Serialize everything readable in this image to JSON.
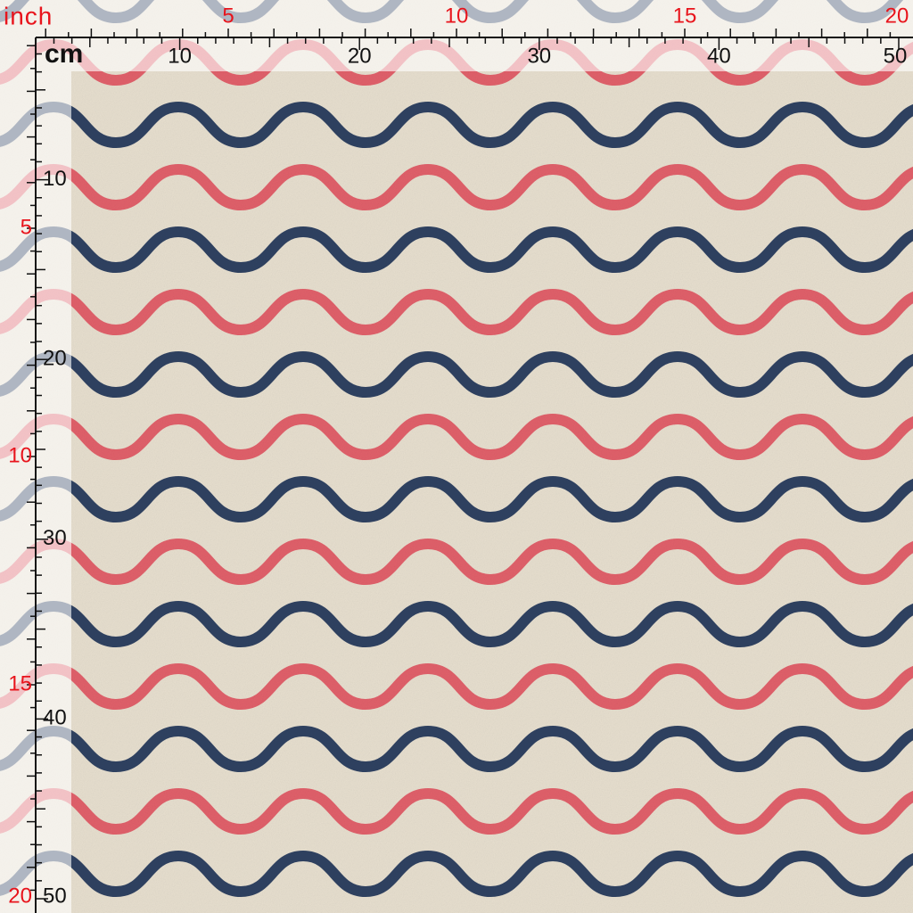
{
  "top_ruler": {
    "unit_inch": "inch",
    "unit_cm": "cm",
    "inch_labels": [
      "5",
      "10",
      "15",
      "20"
    ],
    "cm_labels": [
      "10",
      "20",
      "30",
      "40",
      "50"
    ]
  },
  "left_ruler": {
    "inch_labels": [
      "5",
      "10",
      "15",
      "20"
    ],
    "cm_labels": [
      "10",
      "20",
      "30",
      "40",
      "50"
    ]
  }
}
